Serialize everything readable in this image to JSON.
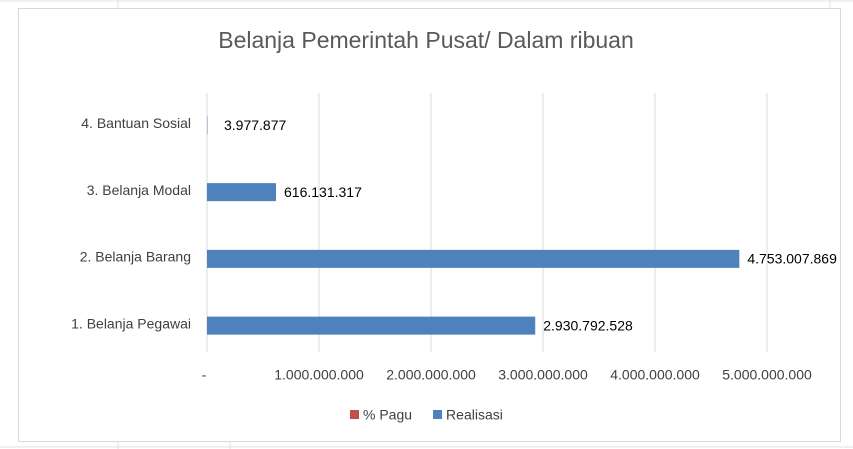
{
  "chart_data": {
    "type": "bar",
    "orientation": "horizontal",
    "title": "Belanja Pemerintah Pusat/ Dalam ribuan",
    "categories": [
      "1. Belanja Pegawai",
      "2. Belanja Barang",
      "3. Belanja Modal",
      "4. Bantuan Sosial"
    ],
    "series": [
      {
        "name": "% Pagu",
        "color": "#c0504d",
        "values": [
          0,
          0,
          0,
          0
        ]
      },
      {
        "name": "Realisasi",
        "color": "#4f81bd",
        "values": [
          2930792528,
          4753007869,
          616131317,
          3977877
        ],
        "value_labels": [
          "2.930.792.528",
          "4.753.007.869",
          "616.131.317",
          "3.977.877"
        ]
      }
    ],
    "xlim": [
      0,
      5000000000
    ],
    "xticks": [
      {
        "value": 0,
        "label": "-"
      },
      {
        "value": 1000000000,
        "label": "1.000.000.000"
      },
      {
        "value": 2000000000,
        "label": "2.000.000.000"
      },
      {
        "value": 3000000000,
        "label": "3.000.000.000"
      },
      {
        "value": 4000000000,
        "label": "4.000.000.000"
      },
      {
        "value": 5000000000,
        "label": "5.000.000.000"
      }
    ],
    "grid": true,
    "legend": "bottom"
  }
}
